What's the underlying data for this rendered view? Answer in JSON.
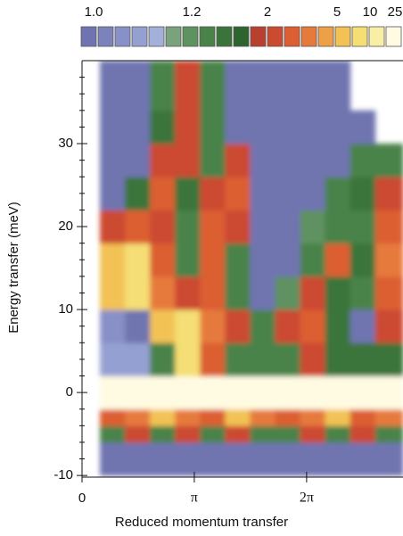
{
  "chart_data": {
    "type": "heatmap",
    "xlabel": "Reduced momentum transfer",
    "ylabel": "Energy transfer (meV)",
    "xlim": [
      0,
      8.98
    ],
    "ylim": [
      -10.2,
      40
    ],
    "xticks": [
      0,
      {
        "value": 3.1416,
        "label": "π"
      },
      {
        "value": 6.2832,
        "label": "2π"
      }
    ],
    "yticks": [
      -10,
      0,
      10,
      20,
      30
    ],
    "yminorticks": [
      -8,
      -6,
      -4,
      -2,
      2,
      4,
      6,
      8,
      12,
      14,
      16,
      18,
      22,
      24,
      26,
      28,
      32,
      34,
      36,
      38
    ],
    "xbins": [
      0.5,
      1.2,
      1.9,
      2.6,
      3.3,
      4.0,
      4.7,
      5.4,
      6.1,
      6.8,
      7.5,
      8.2,
      8.98
    ],
    "ybins": [
      -10,
      -6,
      -4,
      -2,
      2,
      6,
      10,
      14,
      18,
      22,
      26,
      30,
      34,
      40
    ],
    "z": [
      [
        1.0,
        1.0,
        1.0,
        1.0,
        1.0,
        1.0,
        1.0,
        1.0,
        1.0,
        1.0,
        1.0,
        1.0
      ],
      [
        1.3,
        2.5,
        1.3,
        2.5,
        1.3,
        2.5,
        1.3,
        1.3,
        2.5,
        1.3,
        2.5,
        1.3
      ],
      [
        3,
        4,
        5,
        4,
        3,
        5,
        4,
        3,
        4,
        5,
        3,
        4
      ],
      [
        40,
        40,
        40,
        40,
        40,
        40,
        40,
        40,
        40,
        40,
        40,
        40
      ],
      [
        1.1,
        1.1,
        1.3,
        8,
        3,
        1.3,
        1.3,
        1.3,
        2,
        1.5,
        1.5,
        1.5
      ],
      [
        1.05,
        1.0,
        6,
        8,
        4,
        2.5,
        1.3,
        2.5,
        3,
        1.5,
        1.0,
        2
      ],
      [
        6,
        8,
        4,
        2.5,
        3,
        1.3,
        1.0,
        1.2,
        2,
        1.5,
        1.3,
        3
      ],
      [
        5,
        8,
        3,
        1.4,
        3,
        1.4,
        1.0,
        1.0,
        1.3,
        3,
        1.5,
        4
      ],
      [
        2,
        3,
        2,
        1.3,
        3,
        2,
        1.0,
        1.0,
        1.2,
        1.3,
        1.4,
        3
      ],
      [
        1.0,
        1.5,
        3,
        1.5,
        2.5,
        3,
        1.0,
        1.0,
        1.0,
        1.3,
        1.5,
        2
      ],
      [
        1.0,
        1.0,
        2.5,
        2,
        1.4,
        2.5,
        1.0,
        1.0,
        1.0,
        1.0,
        1.3,
        1.3
      ],
      [
        1.0,
        1.0,
        1.5,
        2.5,
        1.3,
        1.0,
        1.0,
        1.0,
        1.0,
        1.0,
        1.0,
        null
      ],
      [
        1.0,
        1.0,
        1.3,
        2,
        1.3,
        1.0,
        1.0,
        1.0,
        1.0,
        1.0,
        null,
        null
      ]
    ],
    "colorbar": {
      "ticks": [
        {
          "value": 1,
          "label": "1.0"
        },
        1.2,
        2,
        5,
        10,
        25
      ],
      "colors": [
        "#6f74b0",
        "#7c82bc",
        "#8890c8",
        "#95a0d2",
        "#a3b0da",
        "#7aa27c",
        "#5e9260",
        "#4a834a",
        "#3b743a",
        "#2e642d",
        "#b9402e",
        "#cc4a30",
        "#dc5e32",
        "#e67a3c",
        "#eea048",
        "#f2c254",
        "#f5de74",
        "#f8eea6",
        "#fffbe2"
      ]
    }
  }
}
